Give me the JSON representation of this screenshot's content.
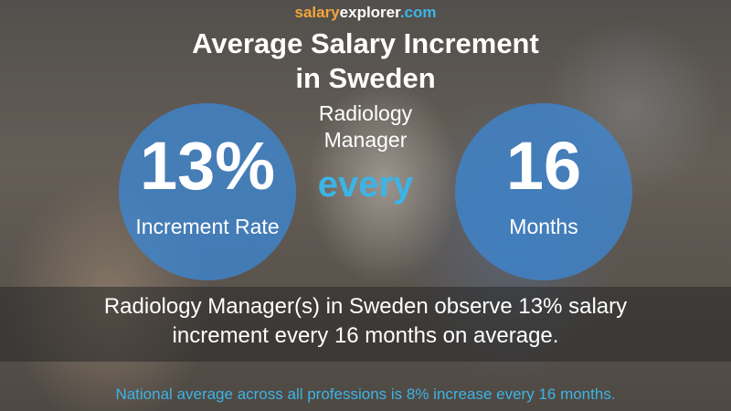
{
  "brand": [
    "salary",
    "explorer",
    ".com"
  ],
  "title": [
    "Average Salary Increment",
    "in Sweden"
  ],
  "job": [
    "Radiology",
    "Manager"
  ],
  "left_circle": {
    "value": "13%",
    "label": "Increment Rate"
  },
  "connector": "every",
  "right_circle": {
    "value": "16",
    "label": "Months"
  },
  "summary": [
    "Radiology Manager(s) in Sweden observe 13% salary",
    "increment every 16 months on average."
  ],
  "footnote": "National average across all professions is 8% increase every 16 months."
}
